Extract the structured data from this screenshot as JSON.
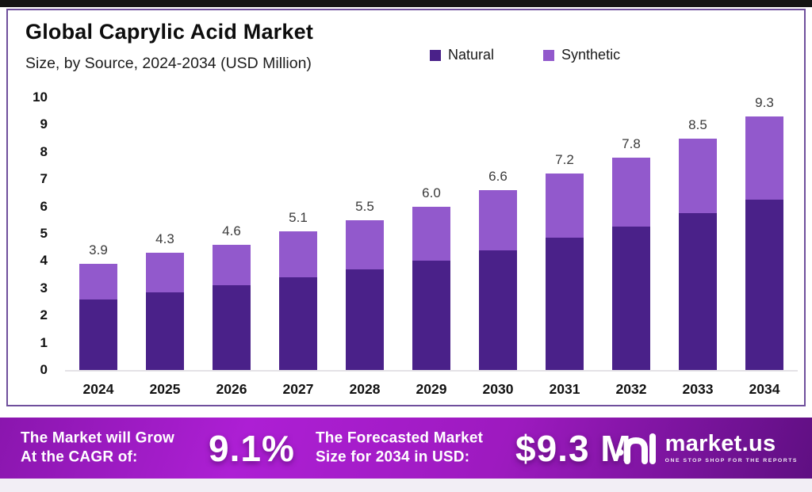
{
  "header": {
    "title": "Global Caprylic Acid Market",
    "subtitle": "Size, by Source, 2024-2034 (USD Million)"
  },
  "chart_data": {
    "type": "bar",
    "stacked": true,
    "title": "Global Caprylic Acid Market",
    "subtitle": "Size, by Source, 2024-2034 (USD Million)",
    "categories": [
      "2024",
      "2025",
      "2026",
      "2027",
      "2028",
      "2029",
      "2030",
      "2031",
      "2032",
      "2033",
      "2034"
    ],
    "series": [
      {
        "name": "Natural",
        "color": "#4a2189",
        "values": [
          2.6,
          2.85,
          3.1,
          3.4,
          3.7,
          4.0,
          4.4,
          4.85,
          5.25,
          5.75,
          6.25
        ]
      },
      {
        "name": "Synthetic",
        "color": "#9259cc",
        "values": [
          1.3,
          1.45,
          1.5,
          1.7,
          1.8,
          2.0,
          2.2,
          2.35,
          2.55,
          2.75,
          3.05
        ]
      }
    ],
    "totals": [
      3.9,
      4.3,
      4.6,
      5.1,
      5.5,
      6.0,
      6.6,
      7.2,
      7.8,
      8.5,
      9.3
    ],
    "total_labels": [
      "3.9",
      "4.3",
      "4.6",
      "5.1",
      "5.5",
      "6.0",
      "6.6",
      "7.2",
      "7.8",
      "8.5",
      "9.3"
    ],
    "ylim": [
      0,
      10
    ],
    "yticks": [
      0,
      1,
      2,
      3,
      4,
      5,
      6,
      7,
      8,
      9,
      10
    ],
    "grid": false,
    "legend_position": "top-right"
  },
  "colors": {
    "natural": "#4a2189",
    "synthetic": "#9259cc",
    "panel_border": "#6f4f9c",
    "banner_left": "#8a16ae",
    "banner_mid": "#ad1fd4",
    "banner_right": "#5f0f82"
  },
  "footer": {
    "cagr_label_line1": "The Market will Grow",
    "cagr_label_line2": "At the CAGR of:",
    "cagr_value": "9.1%",
    "forecast_label_line1": "The Forecasted Market",
    "forecast_label_line2": "Size for 2034 in USD:",
    "forecast_value": "$9.3 M",
    "brand_name": "market.us",
    "brand_tagline": "ONE STOP SHOP FOR THE REPORTS"
  }
}
